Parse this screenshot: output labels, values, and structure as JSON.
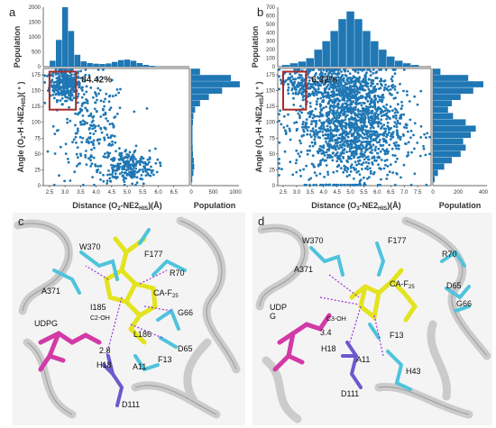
{
  "panels": {
    "a": {
      "label": "a",
      "percent": "84.42%",
      "y_label_main": "Angle (O",
      "y_label_sub1": "2",
      "y_label_mid": "-H -NE2",
      "y_label_sub2": "HIS",
      "y_label_end": ")( ° )",
      "x_label_main": "Distance (O",
      "x_label_sub1": "2",
      "x_label_mid": "-NE2",
      "x_label_sub2": "HIS",
      "x_label_end": ")(Å)",
      "pop_top_label": "Population",
      "pop_right_label": "Population"
    },
    "b": {
      "label": "b",
      "percent": "6.32%",
      "y_label_main": "Angle (O",
      "y_label_sub1": "3",
      "y_label_mid": "-H -NE2",
      "y_label_sub2": "HIS",
      "y_label_end": ")( ° )",
      "x_label_main": "Distance (O",
      "x_label_sub1": "3",
      "x_label_mid": "-NE2",
      "x_label_sub2": "HIS",
      "x_label_end": ")(Å)",
      "pop_top_label": "Population",
      "pop_right_label": "Population"
    },
    "c": {
      "label": "c",
      "residues": [
        "F177",
        "W370",
        "R70",
        "A371",
        "CA-F",
        "I185",
        "G66",
        "C2-OH",
        "UDPG",
        "L186",
        "D65",
        "2.8",
        "H18",
        "F13",
        "A11",
        "D111"
      ],
      "ca_sub": "25"
    },
    "d": {
      "label": "d",
      "residues": [
        "W370",
        "F177",
        "R70",
        "A371",
        "CA-F",
        "D65",
        "UDP",
        "G",
        "G66",
        "C3-OH",
        "3.4",
        "H18",
        "F13",
        "A11",
        "H43",
        "D111"
      ],
      "ca_sub": "25"
    }
  },
  "chart_data": [
    {
      "type": "scatter",
      "panel": "a",
      "xlabel": "Distance (O2-NE2HIS)(Å)",
      "ylabel": "Angle (O2-H -NE2HIS)( ° )",
      "xlim": [
        2.3,
        7.0
      ],
      "ylim": [
        0,
        185
      ],
      "x_ticks": [
        "2.5",
        "3.0",
        "3.5",
        "4.0",
        "4.5",
        "5.0",
        "5.5",
        "6.0",
        "6.5"
      ],
      "y_ticks": [
        "0",
        "25",
        "50",
        "75",
        "100",
        "125",
        "150",
        "175"
      ],
      "top_hist_ticks": [
        "0",
        "500",
        "1000",
        "1500",
        "2000"
      ],
      "right_hist_ticks": [
        "0",
        "500",
        "1000"
      ],
      "annotation": "84.42%",
      "highlight_box": {
        "x": [
          2.5,
          3.35
        ],
        "y": [
          120,
          180
        ]
      },
      "clusters": [
        {
          "cx": 3.0,
          "cy": 160,
          "sx": 0.25,
          "sy": 12,
          "n": 320
        },
        {
          "cx": 3.9,
          "cy": 90,
          "sx": 0.55,
          "sy": 40,
          "n": 220
        },
        {
          "cx": 5.0,
          "cy": 30,
          "sx": 0.45,
          "sy": 14,
          "n": 240
        }
      ],
      "top_hist": [
        {
          "x": 2.6,
          "count": 200
        },
        {
          "x": 2.8,
          "count": 900
        },
        {
          "x": 3.0,
          "count": 2000
        },
        {
          "x": 3.2,
          "count": 1200
        },
        {
          "x": 3.4,
          "count": 400
        },
        {
          "x": 3.6,
          "count": 180
        },
        {
          "x": 3.8,
          "count": 120
        },
        {
          "x": 4.0,
          "count": 100
        },
        {
          "x": 4.2,
          "count": 90
        },
        {
          "x": 4.4,
          "count": 110
        },
        {
          "x": 4.6,
          "count": 160
        },
        {
          "x": 4.8,
          "count": 220
        },
        {
          "x": 5.0,
          "count": 240
        },
        {
          "x": 5.2,
          "count": 200
        },
        {
          "x": 5.4,
          "count": 120
        },
        {
          "x": 5.6,
          "count": 60
        },
        {
          "x": 5.8,
          "count": 30
        },
        {
          "x": 6.0,
          "count": 10
        }
      ],
      "right_hist": [
        {
          "y": 180,
          "count": 200
        },
        {
          "y": 170,
          "count": 900
        },
        {
          "y": 160,
          "count": 1100
        },
        {
          "y": 150,
          "count": 700
        },
        {
          "y": 140,
          "count": 400
        },
        {
          "y": 130,
          "count": 200
        },
        {
          "y": 120,
          "count": 90
        },
        {
          "y": 110,
          "count": 50
        },
        {
          "y": 100,
          "count": 40
        },
        {
          "y": 90,
          "count": 30
        },
        {
          "y": 80,
          "count": 30
        },
        {
          "y": 70,
          "count": 30
        },
        {
          "y": 60,
          "count": 35
        },
        {
          "y": 50,
          "count": 40
        },
        {
          "y": 40,
          "count": 60
        },
        {
          "y": 30,
          "count": 70
        },
        {
          "y": 20,
          "count": 50
        },
        {
          "y": 10,
          "count": 25
        }
      ]
    },
    {
      "type": "scatter",
      "panel": "b",
      "xlabel": "Distance (O3-NE2HIS)(Å)",
      "ylabel": "Angle (O3-H -NE2HIS)( ° )",
      "xlim": [
        2.3,
        8.0
      ],
      "ylim": [
        0,
        185
      ],
      "x_ticks": [
        "2.5",
        "3.0",
        "3.5",
        "4.0",
        "4.5",
        "5.0",
        "5.5",
        "6.0",
        "6.5",
        "7.0",
        "7.5"
      ],
      "y_ticks": [
        "0",
        "25",
        "50",
        "75",
        "100",
        "125",
        "150",
        "175"
      ],
      "top_hist_ticks": [
        "0",
        "100",
        "200",
        "300",
        "400",
        "500",
        "600",
        "700"
      ],
      "right_hist_ticks": [
        "0",
        "200",
        "400"
      ],
      "annotation": "6.32%",
      "highlight_box": {
        "x": [
          2.5,
          3.35
        ],
        "y": [
          120,
          180
        ]
      },
      "clusters": [
        {
          "cx": 3.0,
          "cy": 160,
          "sx": 0.25,
          "sy": 10,
          "n": 90
        },
        {
          "cx": 5.0,
          "cy": 95,
          "sx": 1.0,
          "sy": 45,
          "n": 1500
        },
        {
          "cx": 4.6,
          "cy": 160,
          "sx": 0.8,
          "sy": 14,
          "n": 300
        }
      ],
      "top_hist": [
        {
          "x": 2.6,
          "count": 20
        },
        {
          "x": 2.9,
          "count": 40
        },
        {
          "x": 3.2,
          "count": 60
        },
        {
          "x": 3.5,
          "count": 100
        },
        {
          "x": 3.8,
          "count": 200
        },
        {
          "x": 4.1,
          "count": 300
        },
        {
          "x": 4.4,
          "count": 420
        },
        {
          "x": 4.7,
          "count": 560
        },
        {
          "x": 5.0,
          "count": 650
        },
        {
          "x": 5.3,
          "count": 560
        },
        {
          "x": 5.6,
          "count": 420
        },
        {
          "x": 5.9,
          "count": 300
        },
        {
          "x": 6.2,
          "count": 200
        },
        {
          "x": 6.5,
          "count": 120
        },
        {
          "x": 6.8,
          "count": 70
        },
        {
          "x": 7.1,
          "count": 40
        },
        {
          "x": 7.4,
          "count": 20
        }
      ],
      "right_hist": [
        {
          "y": 180,
          "count": 60
        },
        {
          "y": 170,
          "count": 280
        },
        {
          "y": 160,
          "count": 400
        },
        {
          "y": 150,
          "count": 320
        },
        {
          "y": 140,
          "count": 220
        },
        {
          "y": 130,
          "count": 150
        },
        {
          "y": 120,
          "count": 120
        },
        {
          "y": 110,
          "count": 160
        },
        {
          "y": 100,
          "count": 260
        },
        {
          "y": 90,
          "count": 340
        },
        {
          "y": 80,
          "count": 300
        },
        {
          "y": 70,
          "count": 240
        },
        {
          "y": 60,
          "count": 260
        },
        {
          "y": 50,
          "count": 220
        },
        {
          "y": 40,
          "count": 150
        },
        {
          "y": 30,
          "count": 90
        },
        {
          "y": 20,
          "count": 40
        },
        {
          "y": 10,
          "count": 15
        }
      ]
    }
  ],
  "colors": {
    "scatter": "#1f77b4",
    "highlight_box": "#a52a2a",
    "ribbon": "#c8c8c8",
    "ligand": "#e6e62a",
    "residue": "#4fc3dc",
    "udpg": "#d23aa6",
    "his": "#6a5acd",
    "oxygen": "#e03030",
    "nitrogen": "#3040c0",
    "hbond": "#9b30d9"
  }
}
